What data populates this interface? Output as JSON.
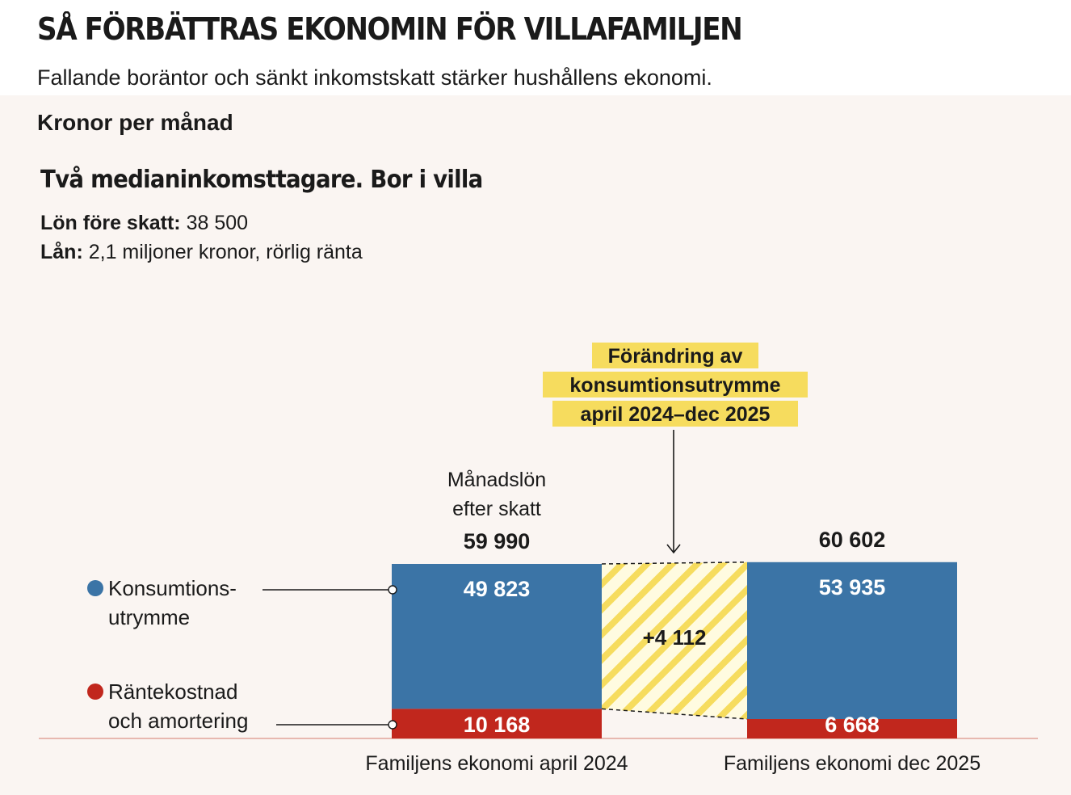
{
  "header": {
    "title": "SÅ FÖRBÄTTRAS EKONOMIN FÖR VILLAFAMILJEN",
    "subtitle": "Fallande boräntor och sänkt inkomstskatt stärker hushållens ekonomi.",
    "unit": "Kronor per månad"
  },
  "case": {
    "title": "Två medianinkomsttagare. Bor i villa",
    "salary_label": "Lön före skatt:",
    "salary_value": "38 500",
    "loan_label": "Lån:",
    "loan_value": "2,1 miljoner kronor, rörlig ränta"
  },
  "colors": {
    "consumption": "#3b74a6",
    "interest": "#c1271d",
    "change": "#f6dc5e",
    "background": "#faf5f2"
  },
  "chart_data": {
    "type": "bar",
    "stacked": true,
    "categories": [
      "Familjens ekonomi april 2024",
      "Familjens ekonomi dec 2025"
    ],
    "series": [
      {
        "name": "Räntekostnad och amortering",
        "color": "#c1271d",
        "values": [
          10168,
          6668
        ],
        "labels": [
          "10 168",
          "6 668"
        ]
      },
      {
        "name": "Konsumtions-utrymme",
        "color": "#3b74a6",
        "values": [
          49823,
          53935
        ],
        "labels": [
          "49 823",
          "53 935"
        ]
      }
    ],
    "totals": [
      59990,
      60602
    ],
    "total_labels": [
      "59 990",
      "60 602"
    ],
    "total_caption": [
      "Månadslön",
      "efter skatt"
    ],
    "legend": [
      {
        "line1": "Konsumtions-",
        "line2": "utrymme",
        "color": "#3b74a6"
      },
      {
        "line1": "Räntekostnad",
        "line2": "och amortering",
        "color": "#c1271d"
      }
    ],
    "change": {
      "value": 4112,
      "label": "+4 112",
      "caption": [
        "Förändring av",
        "konsumtionsutrymme",
        "april 2024–dec 2025"
      ]
    }
  }
}
